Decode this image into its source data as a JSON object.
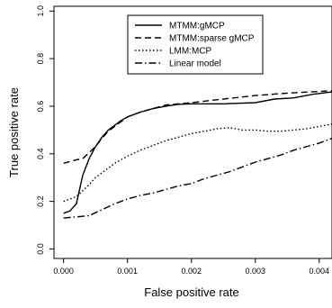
{
  "chart_data": {
    "type": "line",
    "xlabel": "False positive rate",
    "ylabel": "True positive rate",
    "xlim": [
      -0.00015,
      0.0042
    ],
    "ylim": [
      -0.04,
      1.02
    ],
    "xticks": [
      0.0,
      0.001,
      0.002,
      0.003,
      0.004
    ],
    "xtick_labels": [
      "0.000",
      "0.001",
      "0.002",
      "0.003",
      "0.004"
    ],
    "yticks": [
      0.0,
      0.2,
      0.4,
      0.6,
      0.8,
      1.0
    ],
    "ytick_labels": [
      "0.0",
      "0.2",
      "0.4",
      "0.6",
      "0.8",
      "1.0"
    ],
    "grid": false,
    "legend_position": "top-center",
    "series": [
      {
        "name": "MTMM:gMCP",
        "line_style": "solid",
        "color": "#000000",
        "x": [
          0.0,
          0.0001,
          0.0002,
          0.0003,
          0.0004,
          0.0005,
          0.0006,
          0.0007,
          0.0008,
          0.0009,
          0.001,
          0.0012,
          0.0014,
          0.0016,
          0.0018,
          0.002,
          0.0025,
          0.003,
          0.0033,
          0.0036,
          0.0039,
          0.0042
        ],
        "y": [
          0.15,
          0.16,
          0.19,
          0.31,
          0.38,
          0.43,
          0.47,
          0.5,
          0.52,
          0.54,
          0.555,
          0.575,
          0.59,
          0.6,
          0.608,
          0.61,
          0.61,
          0.615,
          0.63,
          0.635,
          0.65,
          0.66
        ]
      },
      {
        "name": "MTMM:sparse gMCP",
        "line_style": "dashed",
        "color": "#000000",
        "x": [
          0.0,
          0.0002,
          0.0003,
          0.0004,
          0.0005,
          0.0006,
          0.0007,
          0.0008,
          0.0009,
          0.001,
          0.0012,
          0.0014,
          0.0016,
          0.0018,
          0.002,
          0.0025,
          0.003,
          0.0035,
          0.0042
        ],
        "y": [
          0.36,
          0.375,
          0.38,
          0.405,
          0.43,
          0.465,
          0.495,
          0.515,
          0.535,
          0.555,
          0.575,
          0.59,
          0.605,
          0.61,
          0.615,
          0.63,
          0.645,
          0.655,
          0.665
        ]
      },
      {
        "name": "LMM:MCP",
        "line_style": "dotted",
        "color": "#000000",
        "x": [
          0.0,
          0.0002,
          0.0004,
          0.0005,
          0.0006,
          0.0007,
          0.0008,
          0.001,
          0.0012,
          0.0014,
          0.0016,
          0.0018,
          0.002,
          0.0022,
          0.0024,
          0.0026,
          0.0028,
          0.003,
          0.0032,
          0.0034,
          0.0036,
          0.0038,
          0.0042
        ],
        "y": [
          0.2,
          0.22,
          0.27,
          0.3,
          0.32,
          0.34,
          0.36,
          0.39,
          0.415,
          0.435,
          0.455,
          0.47,
          0.485,
          0.495,
          0.505,
          0.51,
          0.5,
          0.5,
          0.495,
          0.495,
          0.5,
          0.505,
          0.525
        ]
      },
      {
        "name": "Linear model",
        "line_style": "dashdot",
        "color": "#000000",
        "x": [
          0.0,
          0.0002,
          0.0004,
          0.0006,
          0.0008,
          0.001,
          0.0012,
          0.0014,
          0.0016,
          0.0018,
          0.002,
          0.0022,
          0.0024,
          0.0026,
          0.0028,
          0.003,
          0.0032,
          0.0034,
          0.0036,
          0.0038,
          0.004,
          0.0042
        ],
        "y": [
          0.13,
          0.135,
          0.14,
          0.165,
          0.19,
          0.21,
          0.225,
          0.235,
          0.25,
          0.265,
          0.275,
          0.295,
          0.31,
          0.325,
          0.345,
          0.365,
          0.38,
          0.395,
          0.415,
          0.43,
          0.445,
          0.465
        ]
      }
    ]
  }
}
